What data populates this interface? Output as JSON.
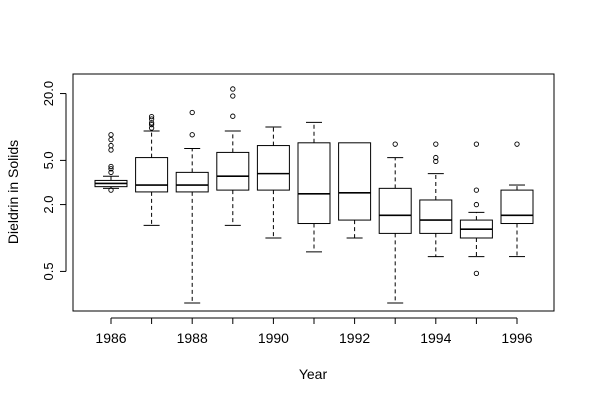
{
  "chart_data": {
    "type": "boxplot",
    "title": "",
    "xlabel": "Year",
    "ylabel": "Dieldrin in Solids",
    "y_scale": "log",
    "ylim": [
      0.22,
      30
    ],
    "yticks": [
      0.5,
      2.0,
      5.0,
      20.0
    ],
    "ytick_labels": [
      "0.5",
      "2.0",
      "5.0",
      "20.0"
    ],
    "categories": [
      "1986",
      "1987",
      "1988",
      "1989",
      "1990",
      "1991",
      "1992",
      "1993",
      "1994",
      "1995",
      "1996"
    ],
    "xtick_labels": [
      "1986",
      "1988",
      "1990",
      "1992",
      "1994",
      "1996"
    ],
    "grid": false,
    "boxes": [
      {
        "year": "1986",
        "whisker_low": 2.8,
        "q1": 2.9,
        "median": 3.1,
        "q3": 3.3,
        "whisker_high": 3.6,
        "outliers": [
          2.7,
          3.9,
          4.2,
          4.4,
          6.2,
          6.8,
          7.7,
          8.5
        ]
      },
      {
        "year": "1987",
        "whisker_low": 1.3,
        "q1": 2.6,
        "median": 3.0,
        "q3": 5.3,
        "whisker_high": 9.2,
        "outliers": [
          9.8,
          10.5,
          10.9,
          11.8,
          12.4
        ]
      },
      {
        "year": "1988",
        "whisker_low": 0.26,
        "q1": 2.6,
        "median": 3.0,
        "q3": 3.9,
        "whisker_high": 6.4,
        "outliers": [
          8.5,
          13.5
        ]
      },
      {
        "year": "1989",
        "whisker_low": 1.3,
        "q1": 2.7,
        "median": 3.6,
        "q3": 5.9,
        "whisker_high": 9.2,
        "outliers": [
          12.5,
          19.0,
          22.0
        ]
      },
      {
        "year": "1990",
        "whisker_low": 1.0,
        "q1": 2.7,
        "median": 3.8,
        "q3": 6.8,
        "whisker_high": 10.0,
        "outliers": []
      },
      {
        "year": "1991",
        "whisker_low": 0.75,
        "q1": 1.35,
        "median": 2.5,
        "q3": 7.2,
        "whisker_high": 11.0,
        "outliers": []
      },
      {
        "year": "1992",
        "whisker_low": 1.0,
        "q1": 1.45,
        "median": 2.55,
        "q3": 7.2,
        "whisker_high": null,
        "outliers": []
      },
      {
        "year": "1993",
        "whisker_low": 0.26,
        "q1": 1.1,
        "median": 1.6,
        "q3": 2.8,
        "whisker_high": 5.3,
        "outliers": [
          7.0
        ]
      },
      {
        "year": "1994",
        "whisker_low": 0.68,
        "q1": 1.1,
        "median": 1.45,
        "q3": 2.2,
        "whisker_high": 3.8,
        "outliers": [
          4.9,
          5.3,
          7.0
        ]
      },
      {
        "year": "1995",
        "whisker_low": 0.68,
        "q1": 1.0,
        "median": 1.2,
        "q3": 1.45,
        "whisker_high": 1.7,
        "outliers": [
          0.48,
          2.0,
          2.7,
          7.0
        ]
      },
      {
        "year": "1996",
        "whisker_low": 0.68,
        "q1": 1.35,
        "median": 1.6,
        "q3": 2.7,
        "whisker_high": 3.0,
        "outliers": [
          7.0
        ]
      }
    ]
  }
}
